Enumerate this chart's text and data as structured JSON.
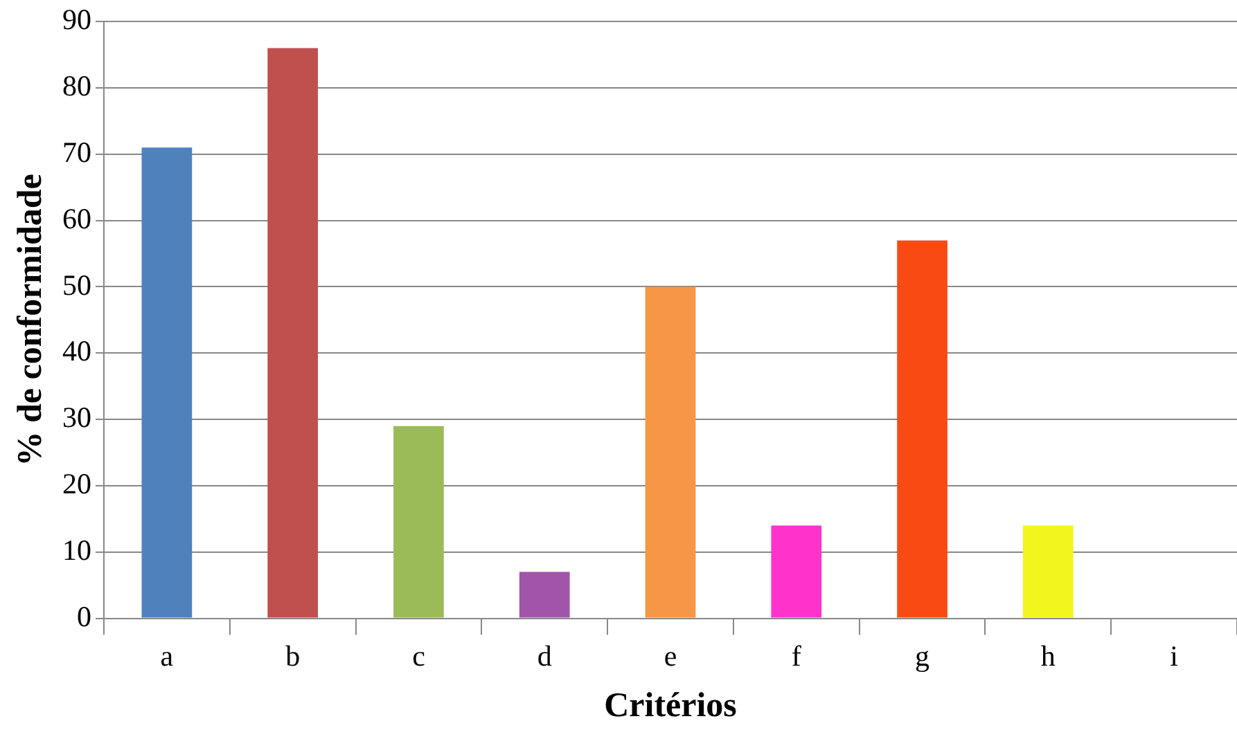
{
  "chart_data": {
    "type": "bar",
    "xlabel": "Critérios",
    "ylabel": "% de conformidade",
    "categories": [
      "a",
      "b",
      "c",
      "d",
      "e",
      "f",
      "g",
      "h",
      "i"
    ],
    "values": [
      71,
      86,
      29,
      7,
      50,
      14,
      57,
      14,
      0
    ],
    "colors": [
      "#4f81bd",
      "#c0504d",
      "#9bbb59",
      "#a055aa",
      "#f79646",
      "#ff33cc",
      "#fa4a14",
      "#f2f51e",
      "#8064a2"
    ],
    "ylim": [
      0,
      90
    ],
    "yticks": [
      0,
      10,
      20,
      30,
      40,
      50,
      60,
      70,
      80,
      90
    ],
    "grid": "y",
    "legend": false
  }
}
